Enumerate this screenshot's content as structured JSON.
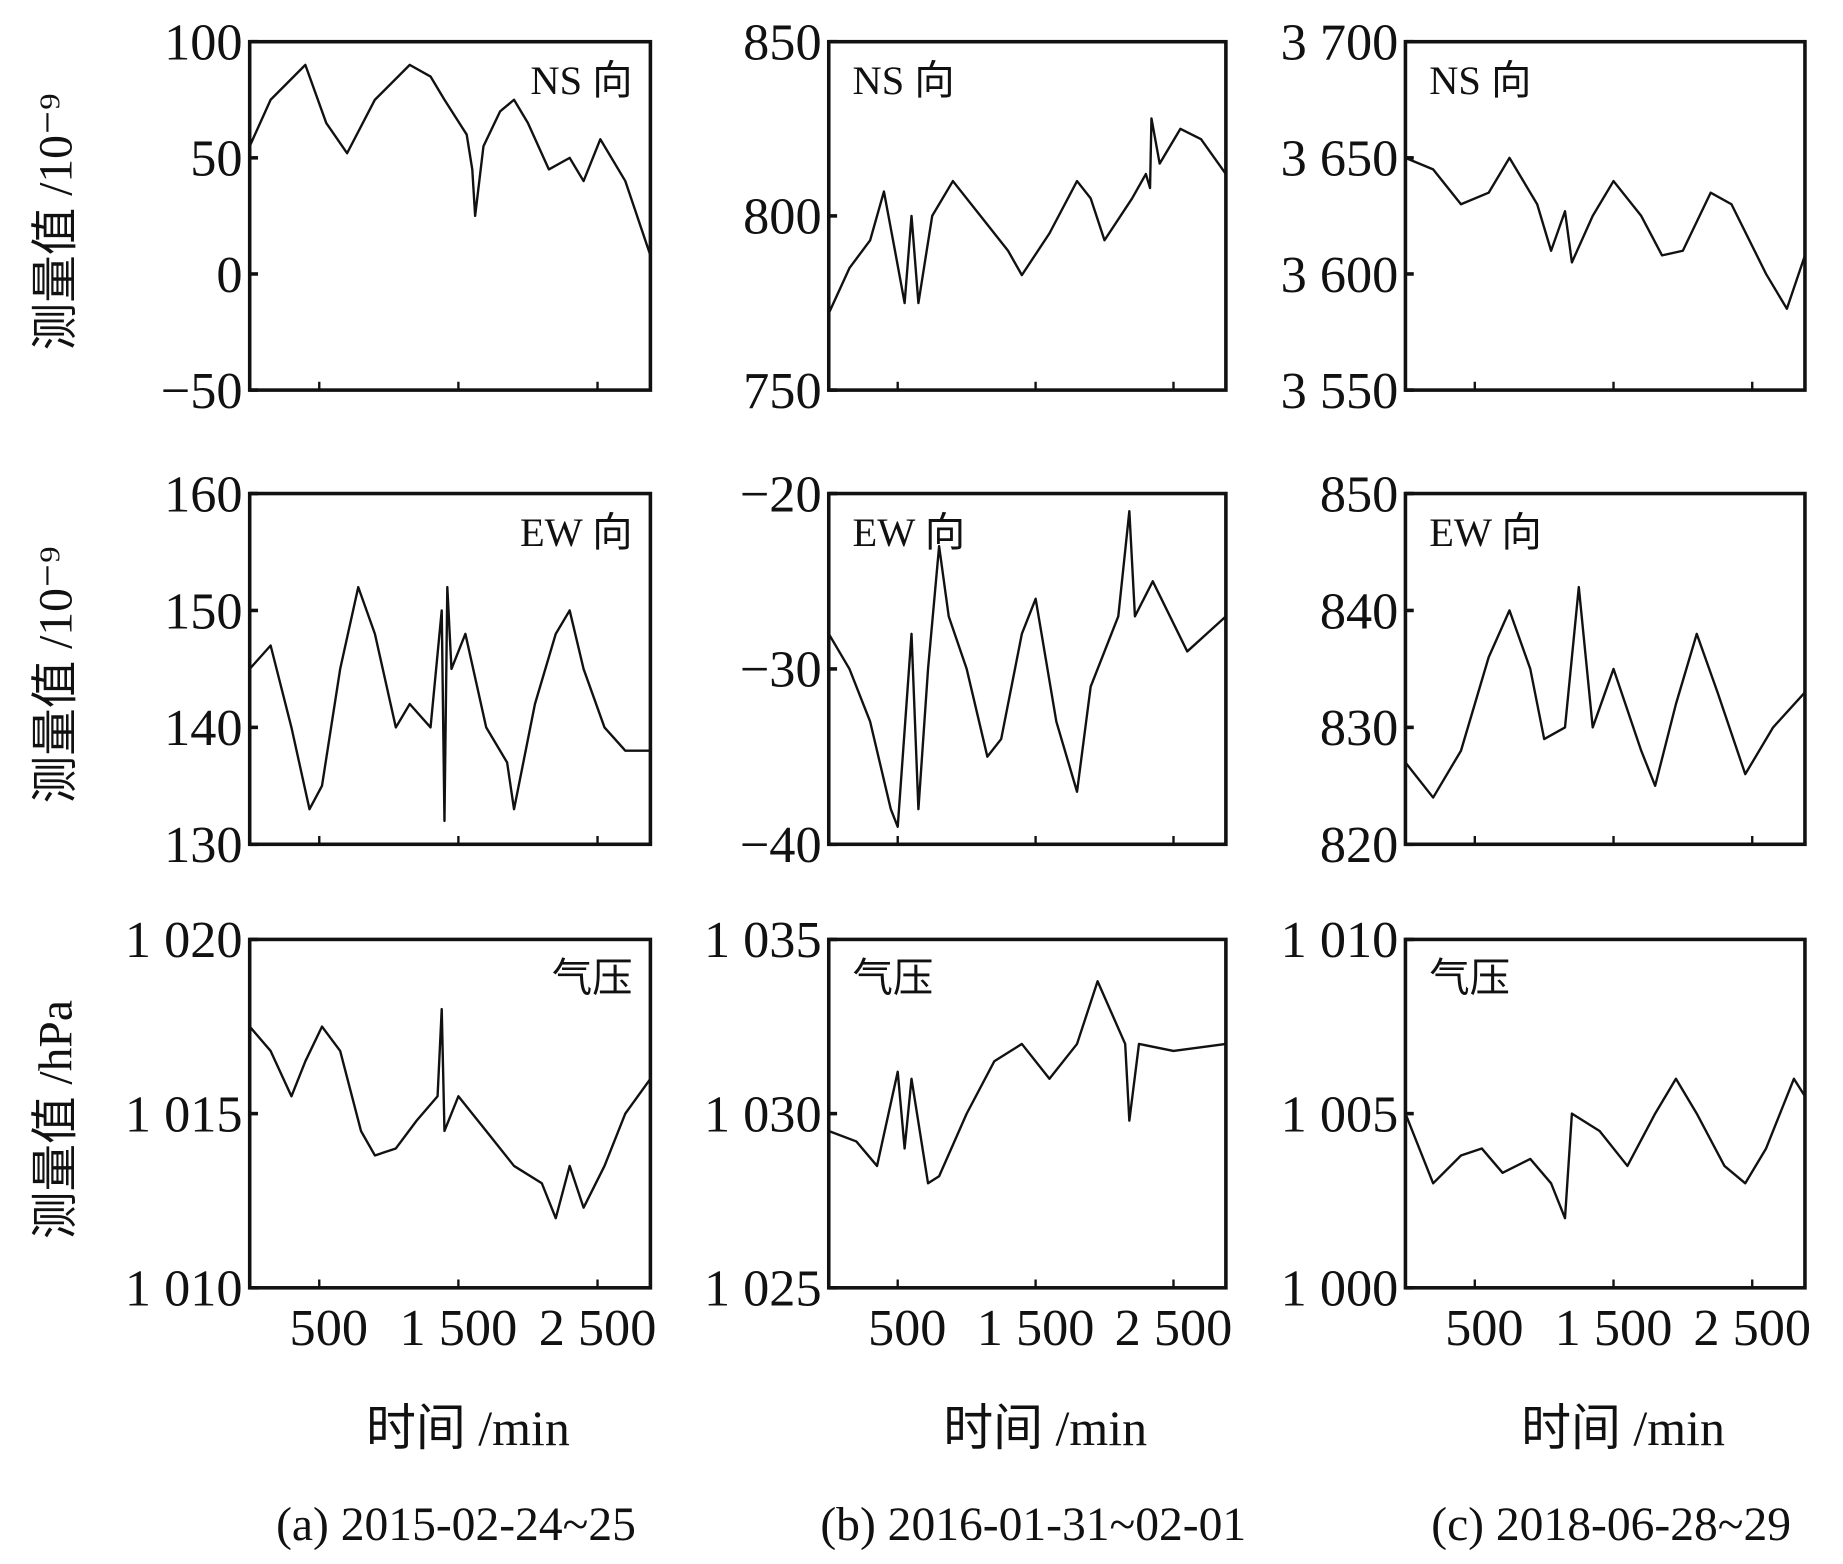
{
  "figure": {
    "columns": [
      {
        "caption": "(a) 2015-02-24~25"
      },
      {
        "caption": "(b) 2016-01-31~02-01"
      },
      {
        "caption": "(c) 2018-06-28~29"
      }
    ],
    "row_ylabels": [
      "测量值 /10⁻⁹",
      "测量值 /10⁻⁹",
      "测量值 /hPa"
    ],
    "xlabel": "时间 /min",
    "line_color": "#111111"
  },
  "chart_data": [
    {
      "type": "line",
      "panel_label": "NS 向",
      "xlim": [
        0,
        2880
      ],
      "ylim": [
        -50,
        100
      ],
      "yticks": [
        {
          "v": 100,
          "label": "100"
        },
        {
          "v": 50,
          "label": "50"
        },
        {
          "v": 0,
          "label": "0"
        },
        {
          "v": -50,
          "label": "−50"
        }
      ],
      "xticks": [
        {
          "v": 500,
          "label": "500"
        },
        {
          "v": 1500,
          "label": "1 500"
        },
        {
          "v": 2500,
          "label": "2 500"
        }
      ],
      "x": [
        0,
        150,
        400,
        550,
        700,
        900,
        1150,
        1300,
        1400,
        1560,
        1600,
        1620,
        1680,
        1800,
        1900,
        2000,
        2150,
        2300,
        2400,
        2520,
        2700,
        2880
      ],
      "y": [
        55,
        75,
        90,
        65,
        52,
        75,
        90,
        85,
        75,
        60,
        45,
        25,
        55,
        70,
        75,
        65,
        45,
        50,
        40,
        58,
        40,
        8
      ]
    },
    {
      "type": "line",
      "panel_label": "NS 向",
      "xlim": [
        0,
        2880
      ],
      "ylim": [
        750,
        850
      ],
      "yticks": [
        {
          "v": 850,
          "label": "850"
        },
        {
          "v": 800,
          "label": "800"
        },
        {
          "v": 750,
          "label": "750"
        }
      ],
      "xticks": [
        {
          "v": 500,
          "label": "500"
        },
        {
          "v": 1500,
          "label": "1 500"
        },
        {
          "v": 2500,
          "label": "2 500"
        }
      ],
      "x": [
        0,
        150,
        300,
        400,
        480,
        550,
        600,
        650,
        750,
        900,
        1100,
        1300,
        1400,
        1600,
        1800,
        1900,
        2000,
        2200,
        2300,
        2330,
        2340,
        2400,
        2550,
        2700,
        2880
      ],
      "y": [
        772,
        785,
        793,
        807,
        790,
        775,
        800,
        775,
        800,
        810,
        800,
        790,
        783,
        795,
        810,
        805,
        793,
        805,
        812,
        808,
        828,
        815,
        825,
        822,
        812
      ]
    },
    {
      "type": "line",
      "panel_label": "NS 向",
      "xlim": [
        0,
        2880
      ],
      "ylim": [
        3550,
        3700
      ],
      "yticks": [
        {
          "v": 3700,
          "label": "3 700"
        },
        {
          "v": 3650,
          "label": "3 650"
        },
        {
          "v": 3600,
          "label": "3 600"
        },
        {
          "v": 3550,
          "label": "3 550"
        }
      ],
      "xticks": [
        {
          "v": 500,
          "label": "500"
        },
        {
          "v": 1500,
          "label": "1 500"
        },
        {
          "v": 2500,
          "label": "2 500"
        }
      ],
      "x": [
        0,
        200,
        400,
        600,
        750,
        950,
        1050,
        1150,
        1200,
        1350,
        1500,
        1700,
        1850,
        2000,
        2200,
        2350,
        2600,
        2750,
        2880
      ],
      "y": [
        3650,
        3645,
        3630,
        3635,
        3650,
        3630,
        3610,
        3627,
        3605,
        3625,
        3640,
        3625,
        3608,
        3610,
        3635,
        3630,
        3600,
        3585,
        3608
      ]
    },
    {
      "type": "line",
      "panel_label": "EW 向",
      "xlim": [
        0,
        2880
      ],
      "ylim": [
        130,
        160
      ],
      "yticks": [
        {
          "v": 160,
          "label": "160"
        },
        {
          "v": 150,
          "label": "150"
        },
        {
          "v": 140,
          "label": "140"
        },
        {
          "v": 130,
          "label": "130"
        }
      ],
      "xticks": [
        {
          "v": 500,
          "label": "500"
        },
        {
          "v": 1500,
          "label": "1 500"
        },
        {
          "v": 2500,
          "label": "2 500"
        }
      ],
      "x": [
        0,
        150,
        300,
        430,
        520,
        650,
        780,
        900,
        1050,
        1150,
        1300,
        1380,
        1400,
        1420,
        1450,
        1550,
        1700,
        1850,
        1900,
        2050,
        2200,
        2300,
        2400,
        2550,
        2700,
        2880
      ],
      "y": [
        145,
        147,
        140,
        133,
        135,
        145,
        152,
        148,
        140,
        142,
        140,
        150,
        132,
        152,
        145,
        148,
        140,
        137,
        133,
        142,
        148,
        150,
        145,
        140,
        138,
        138
      ]
    },
    {
      "type": "line",
      "panel_label": "EW 向",
      "xlim": [
        0,
        2880
      ],
      "ylim": [
        -40,
        -20
      ],
      "yticks": [
        {
          "v": -20,
          "label": "−20"
        },
        {
          "v": -30,
          "label": "−30"
        },
        {
          "v": -40,
          "label": "−40"
        }
      ],
      "xticks": [
        {
          "v": 500,
          "label": "500"
        },
        {
          "v": 1500,
          "label": "1 500"
        },
        {
          "v": 2500,
          "label": "2 500"
        }
      ],
      "x": [
        0,
        150,
        300,
        450,
        500,
        600,
        650,
        720,
        800,
        870,
        1000,
        1150,
        1250,
        1400,
        1500,
        1650,
        1800,
        1900,
        2100,
        2180,
        2220,
        2350,
        2600,
        2880
      ],
      "y": [
        -28,
        -30,
        -33,
        -38,
        -39,
        -28,
        -38,
        -30,
        -23,
        -27,
        -30,
        -35,
        -34,
        -28,
        -26,
        -33,
        -37,
        -31,
        -27,
        -21,
        -27,
        -25,
        -29,
        -27
      ]
    },
    {
      "type": "line",
      "panel_label": "EW 向",
      "xlim": [
        0,
        2880
      ],
      "ylim": [
        820,
        850
      ],
      "yticks": [
        {
          "v": 850,
          "label": "850"
        },
        {
          "v": 840,
          "label": "840"
        },
        {
          "v": 830,
          "label": "830"
        },
        {
          "v": 820,
          "label": "820"
        }
      ],
      "xticks": [
        {
          "v": 500,
          "label": "500"
        },
        {
          "v": 1500,
          "label": "1 500"
        },
        {
          "v": 2500,
          "label": "2 500"
        }
      ],
      "x": [
        0,
        200,
        400,
        600,
        750,
        900,
        1000,
        1150,
        1250,
        1350,
        1500,
        1700,
        1800,
        1950,
        2100,
        2250,
        2450,
        2650,
        2880
      ],
      "y": [
        827,
        824,
        828,
        836,
        840,
        835,
        829,
        830,
        842,
        830,
        835,
        828,
        825,
        832,
        838,
        833,
        826,
        830,
        833
      ]
    },
    {
      "type": "line",
      "panel_label": "气压",
      "xlim": [
        0,
        2880
      ],
      "ylim": [
        1010,
        1020
      ],
      "yticks": [
        {
          "v": 1020,
          "label": "1 020"
        },
        {
          "v": 1015,
          "label": "1 015"
        },
        {
          "v": 1010,
          "label": "1 010"
        }
      ],
      "xticks": [
        {
          "v": 500,
          "label": "500"
        },
        {
          "v": 1500,
          "label": "1 500"
        },
        {
          "v": 2500,
          "label": "2 500"
        }
      ],
      "x": [
        0,
        150,
        300,
        400,
        520,
        650,
        800,
        900,
        1050,
        1200,
        1350,
        1380,
        1400,
        1500,
        1700,
        1900,
        2100,
        2200,
        2300,
        2400,
        2550,
        2700,
        2880
      ],
      "y": [
        1017.5,
        1016.8,
        1015.5,
        1016.5,
        1017.5,
        1016.8,
        1014.5,
        1013.8,
        1014,
        1014.8,
        1015.5,
        1018,
        1014.5,
        1015.5,
        1014.5,
        1013.5,
        1013,
        1012,
        1013.5,
        1012.3,
        1013.5,
        1015,
        1016
      ]
    },
    {
      "type": "line",
      "panel_label": "气压",
      "xlim": [
        0,
        2880
      ],
      "ylim": [
        1025,
        1035
      ],
      "yticks": [
        {
          "v": 1035,
          "label": "1 035"
        },
        {
          "v": 1030,
          "label": "1 030"
        },
        {
          "v": 1025,
          "label": "1 025"
        }
      ],
      "xticks": [
        {
          "v": 500,
          "label": "500"
        },
        {
          "v": 1500,
          "label": "1 500"
        },
        {
          "v": 2500,
          "label": "2 500"
        }
      ],
      "x": [
        0,
        200,
        350,
        500,
        550,
        600,
        720,
        800,
        1000,
        1200,
        1400,
        1600,
        1800,
        1950,
        2150,
        2180,
        2250,
        2500,
        2880
      ],
      "y": [
        1029.5,
        1029.2,
        1028.5,
        1031.2,
        1029,
        1031,
        1028,
        1028.2,
        1030,
        1031.5,
        1032,
        1031,
        1032,
        1033.8,
        1032,
        1029.8,
        1032,
        1031.8,
        1032
      ]
    },
    {
      "type": "line",
      "panel_label": "气压",
      "xlim": [
        0,
        2880
      ],
      "ylim": [
        1000,
        1010
      ],
      "yticks": [
        {
          "v": 1010,
          "label": "1 010"
        },
        {
          "v": 1005,
          "label": "1 005"
        },
        {
          "v": 1000,
          "label": "1 000"
        }
      ],
      "xticks": [
        {
          "v": 500,
          "label": "500"
        },
        {
          "v": 1500,
          "label": "1 500"
        },
        {
          "v": 2500,
          "label": "2 500"
        }
      ],
      "x": [
        0,
        200,
        400,
        550,
        700,
        900,
        1050,
        1150,
        1200,
        1400,
        1600,
        1800,
        1950,
        2100,
        2300,
        2450,
        2600,
        2800,
        2880
      ],
      "y": [
        1005,
        1003,
        1003.8,
        1004,
        1003.3,
        1003.7,
        1003,
        1002,
        1005,
        1004.5,
        1003.5,
        1005,
        1006,
        1005,
        1003.5,
        1003,
        1004,
        1006,
        1005.5
      ]
    }
  ]
}
